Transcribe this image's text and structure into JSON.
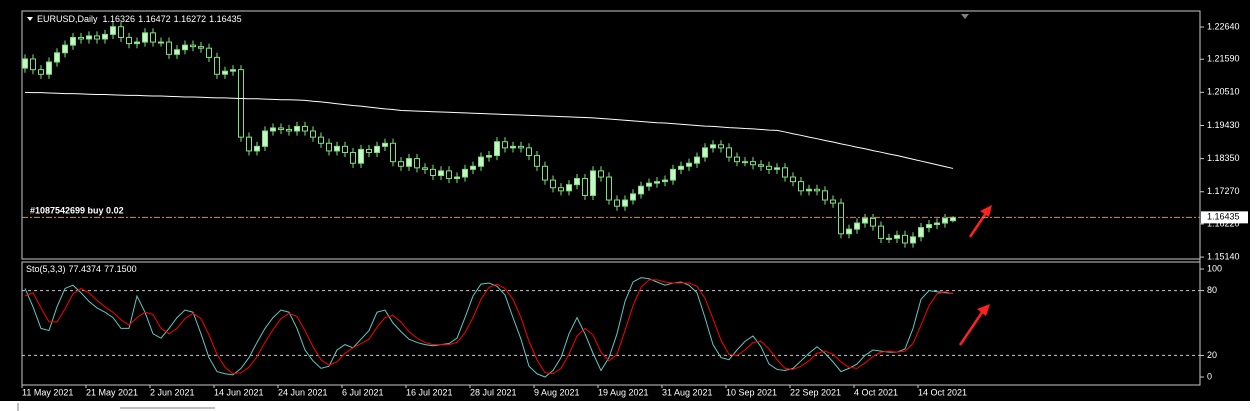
{
  "chart_data": [
    {
      "type": "candlestick",
      "title": "EURUSD,Daily",
      "ylim": [
        1.1511,
        1.2313
      ],
      "yticks": [
        {
          "value": 1.2264,
          "label": "1.22640"
        },
        {
          "value": 1.2159,
          "label": "1.21590"
        },
        {
          "value": 1.2051,
          "label": "1.20510"
        },
        {
          "value": 1.1943,
          "label": "1.19430"
        },
        {
          "value": 1.1835,
          "label": "1.18350"
        },
        {
          "value": 1.1727,
          "label": "1.17270"
        },
        {
          "value": 1.1622,
          "label": "1.16220"
        },
        {
          "value": 1.1514,
          "label": "1.15140"
        }
      ],
      "up_color": "#c8f5c8",
      "down_color": "#000000",
      "line_color": "#7fe07f",
      "open": [
        1.213,
        1.216,
        1.2125,
        1.211,
        1.215,
        1.218,
        1.2205,
        1.223,
        1.2225,
        1.2235,
        1.2225,
        1.224,
        1.2265,
        1.223,
        1.221,
        1.2215,
        1.2245,
        1.2215,
        1.2215,
        1.2175,
        1.219,
        1.2205,
        1.22,
        1.2195,
        1.2165,
        1.211,
        1.212,
        1.2125,
        1.1905,
        1.186,
        1.1875,
        1.1925,
        1.1935,
        1.193,
        1.1925,
        1.194,
        1.1925,
        1.1905,
        1.1885,
        1.186,
        1.1875,
        1.1855,
        1.182,
        1.1865,
        1.1855,
        1.1875,
        1.1885,
        1.1825,
        1.181,
        1.1835,
        1.1805,
        1.18,
        1.178,
        1.1795,
        1.177,
        1.1775,
        1.18,
        1.181,
        1.184,
        1.1845,
        1.189,
        1.187,
        1.1875,
        1.187,
        1.1845,
        1.181,
        1.1765,
        1.174,
        1.173,
        1.175,
        1.177,
        1.1715,
        1.1795,
        1.1775,
        1.17,
        1.168,
        1.17,
        1.172,
        1.1745,
        1.1755,
        1.176,
        1.1765,
        1.18,
        1.181,
        1.182,
        1.184,
        1.187,
        1.188,
        1.187,
        1.184,
        1.1825,
        1.1825,
        1.1815,
        1.181,
        1.18,
        1.1805,
        1.1775,
        1.176,
        1.173,
        1.1735,
        1.173,
        1.17,
        1.169,
        1.159,
        1.1605,
        1.1625,
        1.164,
        1.1615,
        1.1575,
        1.1575,
        1.1585,
        1.156,
        1.158,
        1.161,
        1.162,
        1.1625,
        1.16326
      ],
      "high": [
        1.2175,
        1.2175,
        1.214,
        1.2165,
        1.2195,
        1.222,
        1.2245,
        1.2245,
        1.225,
        1.225,
        1.2255,
        1.228,
        1.228,
        1.2245,
        1.223,
        1.226,
        1.226,
        1.223,
        1.223,
        1.2205,
        1.222,
        1.222,
        1.2215,
        1.221,
        1.218,
        1.2135,
        1.214,
        1.214,
        1.192,
        1.189,
        1.194,
        1.195,
        1.195,
        1.1945,
        1.1955,
        1.1955,
        1.194,
        1.192,
        1.19,
        1.189,
        1.189,
        1.187,
        1.188,
        1.188,
        1.189,
        1.19,
        1.19,
        1.184,
        1.185,
        1.185,
        1.182,
        1.1815,
        1.181,
        1.181,
        1.179,
        1.1815,
        1.1825,
        1.1855,
        1.186,
        1.1905,
        1.1905,
        1.189,
        1.189,
        1.1885,
        1.186,
        1.1825,
        1.178,
        1.1755,
        1.1765,
        1.1785,
        1.1785,
        1.181,
        1.181,
        1.179,
        1.1715,
        1.1715,
        1.1735,
        1.176,
        1.177,
        1.1775,
        1.178,
        1.1815,
        1.1825,
        1.1835,
        1.1855,
        1.1885,
        1.1895,
        1.1895,
        1.1885,
        1.1855,
        1.184,
        1.184,
        1.183,
        1.1825,
        1.182,
        1.182,
        1.179,
        1.1775,
        1.175,
        1.175,
        1.1745,
        1.1715,
        1.1705,
        1.162,
        1.164,
        1.1655,
        1.1655,
        1.163,
        1.159,
        1.16,
        1.16,
        1.1595,
        1.1625,
        1.1635,
        1.164,
        1.1655,
        1.16472
      ],
      "low": [
        1.2115,
        1.211,
        1.2095,
        1.2095,
        1.2135,
        1.2165,
        1.219,
        1.221,
        1.221,
        1.221,
        1.221,
        1.2225,
        1.2215,
        1.2195,
        1.2195,
        1.22,
        1.22,
        1.22,
        1.216,
        1.216,
        1.2175,
        1.2185,
        1.218,
        1.215,
        1.2095,
        1.2095,
        1.2105,
        1.189,
        1.1845,
        1.1845,
        1.186,
        1.191,
        1.1915,
        1.191,
        1.191,
        1.191,
        1.189,
        1.187,
        1.1845,
        1.1845,
        1.184,
        1.1805,
        1.1805,
        1.184,
        1.184,
        1.186,
        1.181,
        1.1795,
        1.1795,
        1.179,
        1.1785,
        1.1765,
        1.1765,
        1.1755,
        1.1755,
        1.176,
        1.1785,
        1.1795,
        1.1825,
        1.183,
        1.1855,
        1.1855,
        1.1855,
        1.183,
        1.1795,
        1.175,
        1.1725,
        1.1715,
        1.1715,
        1.1735,
        1.17,
        1.17,
        1.176,
        1.1685,
        1.1665,
        1.1665,
        1.1685,
        1.1705,
        1.173,
        1.174,
        1.1745,
        1.175,
        1.1785,
        1.1795,
        1.1805,
        1.1825,
        1.1855,
        1.1855,
        1.1825,
        1.181,
        1.181,
        1.18,
        1.1795,
        1.1785,
        1.1785,
        1.176,
        1.1745,
        1.1715,
        1.1715,
        1.1715,
        1.1685,
        1.1675,
        1.1575,
        1.1575,
        1.159,
        1.161,
        1.16,
        1.156,
        1.156,
        1.156,
        1.1545,
        1.1545,
        1.1565,
        1.1595,
        1.1605,
        1.161,
        1.16272
      ],
      "close": [
        1.216,
        1.2125,
        1.211,
        1.215,
        1.218,
        1.2205,
        1.223,
        1.2225,
        1.2235,
        1.2225,
        1.224,
        1.2265,
        1.223,
        1.221,
        1.2215,
        1.2245,
        1.2215,
        1.2215,
        1.2175,
        1.219,
        1.2205,
        1.22,
        1.2195,
        1.2165,
        1.211,
        1.212,
        1.2125,
        1.1905,
        1.186,
        1.1875,
        1.1925,
        1.1935,
        1.193,
        1.1925,
        1.194,
        1.1925,
        1.1905,
        1.1885,
        1.186,
        1.1875,
        1.1855,
        1.182,
        1.1865,
        1.1855,
        1.1875,
        1.1885,
        1.1825,
        1.181,
        1.1835,
        1.1805,
        1.18,
        1.178,
        1.1795,
        1.177,
        1.1775,
        1.18,
        1.181,
        1.184,
        1.1845,
        1.189,
        1.187,
        1.1875,
        1.187,
        1.1845,
        1.181,
        1.1765,
        1.174,
        1.173,
        1.175,
        1.177,
        1.1715,
        1.1795,
        1.1775,
        1.17,
        1.168,
        1.17,
        1.172,
        1.1745,
        1.1755,
        1.176,
        1.1765,
        1.18,
        1.181,
        1.182,
        1.184,
        1.187,
        1.188,
        1.187,
        1.184,
        1.1825,
        1.1825,
        1.1815,
        1.181,
        1.18,
        1.1805,
        1.1775,
        1.176,
        1.173,
        1.1735,
        1.173,
        1.17,
        1.169,
        1.159,
        1.1605,
        1.1625,
        1.164,
        1.1615,
        1.1575,
        1.1575,
        1.1585,
        1.156,
        1.158,
        1.161,
        1.162,
        1.1625,
        1.164,
        1.16435
      ],
      "moving_average": {
        "color": "#ffffff",
        "values": [
          1.2051,
          1.205,
          1.205,
          1.2049,
          1.2048,
          1.2047,
          1.2047,
          1.2046,
          1.2045,
          1.2044,
          1.2044,
          1.2043,
          1.2042,
          1.2041,
          1.2041,
          1.204,
          1.2039,
          1.2039,
          1.2038,
          1.2037,
          1.2036,
          1.2036,
          1.2035,
          1.2034,
          1.2033,
          1.2033,
          1.2032,
          1.2031,
          1.203,
          1.203,
          1.2029,
          1.2028,
          1.2027,
          1.2027,
          1.2026,
          1.2025,
          1.2022,
          1.202,
          1.2017,
          1.2014,
          1.2011,
          1.2008,
          1.2006,
          1.2003,
          1.2,
          1.1997,
          1.1995,
          1.1992,
          1.1991,
          1.199,
          1.1989,
          1.1988,
          1.1987,
          1.1986,
          1.1985,
          1.1984,
          1.1983,
          1.1982,
          1.1981,
          1.198,
          1.1979,
          1.1978,
          1.1977,
          1.1976,
          1.1975,
          1.1974,
          1.1973,
          1.1972,
          1.1971,
          1.197,
          1.1969,
          1.1968,
          1.1966,
          1.1964,
          1.1962,
          1.196,
          1.1958,
          1.1956,
          1.1954,
          1.1952,
          1.1951,
          1.1949,
          1.1947,
          1.1945,
          1.1943,
          1.1941,
          1.194,
          1.1938,
          1.1936,
          1.1935,
          1.1933,
          1.1932,
          1.193,
          1.1928,
          1.1927,
          1.1922,
          1.1916,
          1.1911,
          1.1905,
          1.19,
          1.1894,
          1.1889,
          1.1883,
          1.1878,
          1.1872,
          1.1867,
          1.1861,
          1.1856,
          1.185,
          1.1845,
          1.1839,
          1.1833,
          1.1827,
          1.1821,
          1.1815,
          1.1809,
          1.1803
        ]
      },
      "order_line": {
        "label": "#1087542699 buy 0.02",
        "price": 1.16435,
        "color": "#c89060"
      }
    },
    {
      "type": "line",
      "title": "Sto(5,3,3)",
      "readout": [
        77.4374,
        {
          "value": 77.15,
          "label": "77.1500"
        }
      ],
      "ylim": [
        -7.4,
        106.5
      ],
      "yticks": [
        0,
        20,
        80,
        100
      ],
      "levels": [
        20,
        80
      ],
      "categories": [
        "11 May 2021",
        null,
        null,
        null,
        null,
        null,
        null,
        null,
        "21 May 2021",
        null,
        null,
        null,
        null,
        null,
        null,
        null,
        "2 Jun 2021",
        null,
        null,
        null,
        null,
        null,
        null,
        null,
        "14 Jun 2021",
        null,
        null,
        null,
        null,
        null,
        null,
        null,
        "24 Jun 2021",
        null,
        null,
        null,
        null,
        null,
        null,
        null,
        "6 Jul 2021",
        null,
        null,
        null,
        null,
        null,
        null,
        null,
        "16 Jul 2021",
        null,
        null,
        null,
        null,
        null,
        null,
        null,
        "28 Jul 2021",
        null,
        null,
        null,
        null,
        null,
        null,
        null,
        "9 Aug 2021",
        null,
        null,
        null,
        null,
        null,
        null,
        null,
        "19 Aug 2021",
        null,
        null,
        null,
        null,
        null,
        null,
        null,
        "31 Aug 2021",
        null,
        null,
        null,
        null,
        null,
        null,
        null,
        "10 Sep 2021",
        null,
        null,
        null,
        null,
        null,
        null,
        null,
        "22 Sep 2021",
        null,
        null,
        null,
        null,
        null,
        null,
        null,
        "4 Oct 2021",
        null,
        null,
        null,
        null,
        null,
        null,
        null,
        "14 Oct 2021",
        null,
        null,
        null,
        null
      ],
      "series": [
        {
          "color": "#5fc8c0",
          "values": [
            82,
            65,
            45,
            43,
            65,
            82,
            85,
            78,
            70,
            64,
            60,
            55,
            45,
            45,
            75,
            60,
            40,
            36,
            45,
            55,
            62,
            60,
            40,
            18,
            5,
            3,
            2,
            8,
            18,
            32,
            45,
            55,
            62,
            60,
            45,
            25,
            15,
            8,
            10,
            25,
            30,
            27,
            35,
            43,
            60,
            62,
            50,
            42,
            35,
            32,
            30,
            29,
            30,
            31,
            36,
            55,
            75,
            86,
            87,
            84,
            76,
            55,
            35,
            10,
            3,
            0,
            6,
            18,
            40,
            55,
            40,
            22,
            6,
            18,
            40,
            70,
            88,
            92,
            91,
            88,
            85,
            87,
            88,
            85,
            78,
            55,
            30,
            18,
            16,
            25,
            33,
            38,
            28,
            12,
            7,
            6,
            8,
            15,
            22,
            28,
            22,
            14,
            5,
            8,
            12,
            20,
            25,
            24,
            23,
            23,
            26,
            45,
            72,
            80,
            79,
            78,
            77.4374
          ]
        },
        {
          "color": "#ff0000",
          "values": [
            75,
            78,
            64,
            51,
            51,
            63,
            77,
            82,
            78,
            71,
            65,
            60,
            53,
            48,
            55,
            60,
            58,
            45,
            40,
            45,
            54,
            59,
            54,
            39,
            21,
            9,
            3,
            4,
            9,
            19,
            32,
            44,
            54,
            59,
            56,
            43,
            28,
            16,
            11,
            14,
            22,
            27,
            31,
            35,
            46,
            55,
            57,
            51,
            42,
            36,
            32,
            30,
            30,
            30,
            32,
            41,
            55,
            72,
            83,
            86,
            82,
            72,
            55,
            33,
            16,
            4,
            3,
            8,
            21,
            38,
            45,
            39,
            23,
            15,
            21,
            43,
            66,
            83,
            90,
            90,
            88,
            87,
            87,
            87,
            84,
            73,
            54,
            34,
            21,
            20,
            25,
            32,
            33,
            26,
            16,
            8,
            7,
            10,
            15,
            22,
            24,
            21,
            14,
            9,
            8,
            13,
            19,
            23,
            24,
            23,
            24,
            31,
            48,
            66,
            77,
            79,
            77.15
          ]
        }
      ]
    }
  ]
}
